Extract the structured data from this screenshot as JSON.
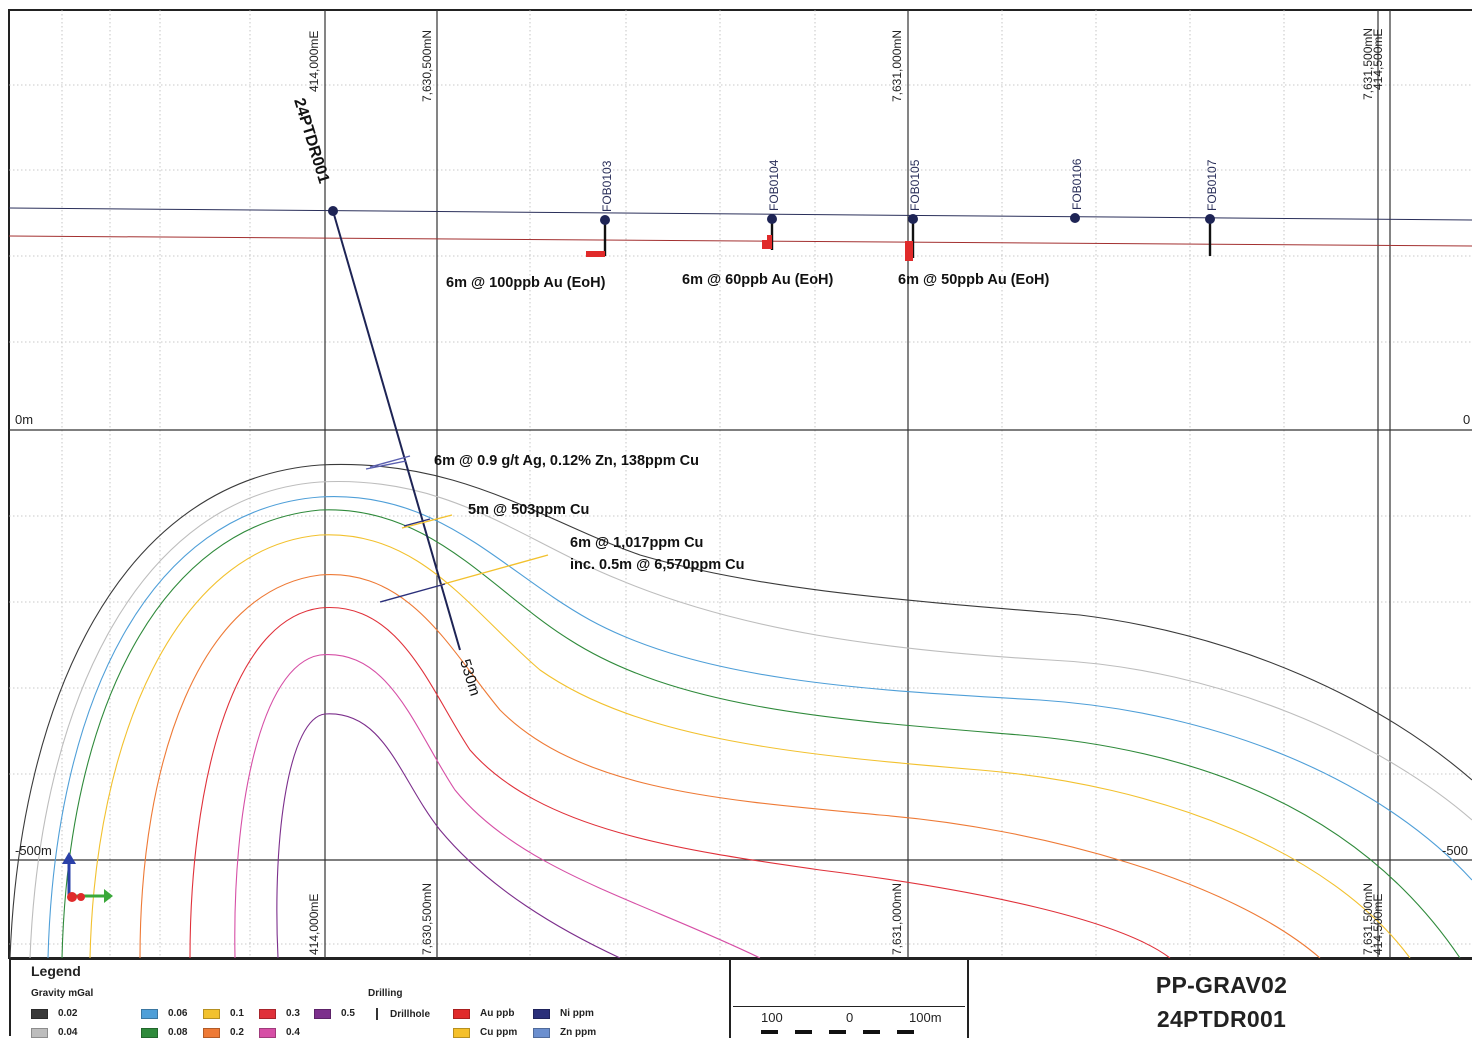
{
  "grid": {
    "top_labels": [
      "414,000mE",
      "7,630,500mN",
      "7,631,000mN",
      "7,631,500mN",
      "414,500mE"
    ],
    "bottom_labels": [
      "414,000mE",
      "7,630,500mN",
      "7,631,000mN",
      "7,631,500mN",
      "414,500mE"
    ],
    "depth_labels": {
      "surface_left": "0m",
      "surface_right": "0",
      "base_left": "-500m",
      "base_right": "-500"
    }
  },
  "drillholes": {
    "main": {
      "name": "24PTDR001",
      "depth_label": "530m",
      "color": "#1e2455"
    },
    "collars": [
      "FOB0103",
      "FOB0104",
      "FOB0105",
      "FOB0106",
      "FOB0107"
    ]
  },
  "annotations": {
    "surface": [
      "6m @ 100ppb Au (EoH)",
      "6m @ 60ppb Au (EoH)",
      "6m @ 50ppb Au (EoH)"
    ],
    "intercept_1": "6m @ 0.9 g/t Ag, 0.12% Zn, 138ppm Cu",
    "intercept_2": "5m @ 503ppm Cu",
    "intercept_3_line1": "6m @ 1,017ppm Cu",
    "intercept_3_line2": "inc. 0.5m @ 6,570ppm Cu"
  },
  "gravity_contours": [
    {
      "value": "0.02",
      "color": "#3a3a3a"
    },
    {
      "value": "0.04",
      "color": "#bdbdbd"
    },
    {
      "value": "0.06",
      "color": "#4f9fd8"
    },
    {
      "value": "0.08",
      "color": "#2f8a3b"
    },
    {
      "value": "0.1",
      "color": "#f2c12e"
    },
    {
      "value": "0.2",
      "color": "#ee7a36"
    },
    {
      "value": "0.3",
      "color": "#e0313a"
    },
    {
      "value": "0.4",
      "color": "#d64fa6"
    },
    {
      "value": "0.5",
      "color": "#7c2f8c"
    }
  ],
  "legend": {
    "title": "Legend",
    "gravity_label": "Gravity mGal",
    "drilling_label": "Drilling",
    "drill_items": [
      {
        "label": "Drillhole",
        "kind": "line",
        "color": "#333333"
      },
      {
        "label": "Au ppb",
        "kind": "swatch",
        "color": "#e02a2a"
      },
      {
        "label": "Ni ppm",
        "kind": "swatch",
        "color": "#2a2f7a"
      },
      {
        "label": "Cu ppm",
        "kind": "swatch",
        "color": "#f5c02a"
      },
      {
        "label": "Zn ppm",
        "kind": "swatch",
        "color": "#6b8fcf"
      }
    ]
  },
  "scale": {
    "left": "100",
    "mid": "0",
    "right": "100m"
  },
  "title": {
    "line1": "PP-GRAV02",
    "line2": "24PTDR001"
  }
}
